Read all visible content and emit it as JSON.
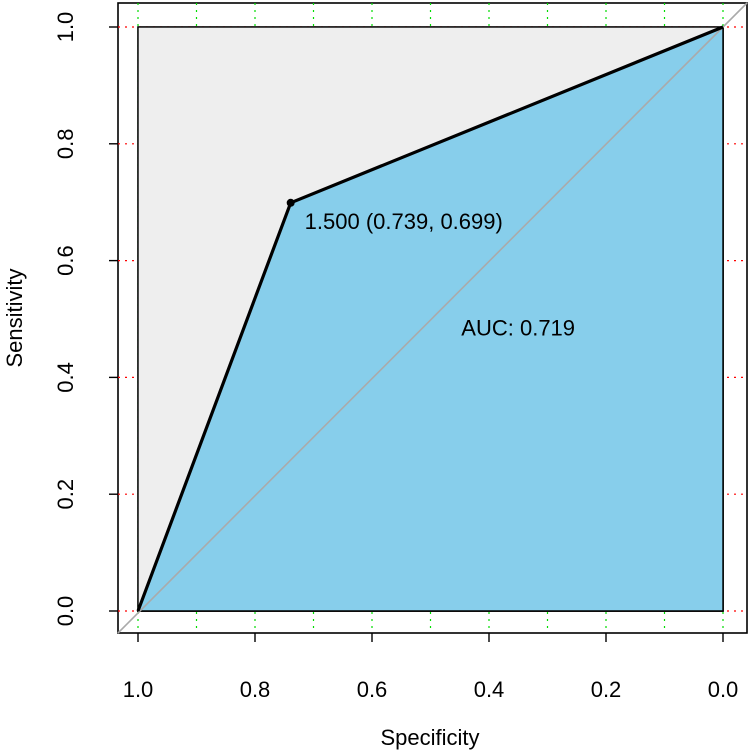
{
  "chart_data": {
    "type": "line",
    "title": "",
    "xlabel": "Specificity",
    "ylabel": "Sensitivity",
    "x_reversed": true,
    "xlim": [
      1.0,
      0.0
    ],
    "ylim": [
      0.0,
      1.0
    ],
    "x_ticks": [
      1.0,
      0.8,
      0.6,
      0.4,
      0.2,
      0.0
    ],
    "x_tick_labels": [
      "1.0",
      "0.8",
      "0.6",
      "0.4",
      "0.2",
      "0.0"
    ],
    "y_ticks": [
      0.0,
      0.2,
      0.4,
      0.6,
      0.8,
      1.0
    ],
    "y_tick_labels": [
      "0.0",
      "0.2",
      "0.4",
      "0.6",
      "0.8",
      "1.0"
    ],
    "x_grid": [
      1.0,
      0.9,
      0.8,
      0.7,
      0.6,
      0.5,
      0.4,
      0.3,
      0.2,
      0.1,
      0.0
    ],
    "y_grid": [
      0.0,
      0.2,
      0.4,
      0.6,
      0.8,
      1.0
    ],
    "series": [
      {
        "specificity": [
          1.0,
          0.739,
          0.0
        ],
        "sensitivity": [
          0.0,
          0.699,
          1.0
        ]
      }
    ],
    "threshold_point": {
      "specificity": 0.739,
      "sensitivity": 0.699,
      "label": "1.500 (0.739, 0.699)"
    },
    "auc_label": "AUC: 0.719",
    "auc_label_pos": {
      "specificity": 0.345,
      "sensitivity": 0.48
    },
    "colors": {
      "auc_fill": "#87CEEB",
      "background_fill": "#EEEEEE",
      "x_grid": "#00DD00",
      "y_grid": "#FF0000",
      "diagonal": "#AAAAAA",
      "curve": "#000000"
    }
  }
}
